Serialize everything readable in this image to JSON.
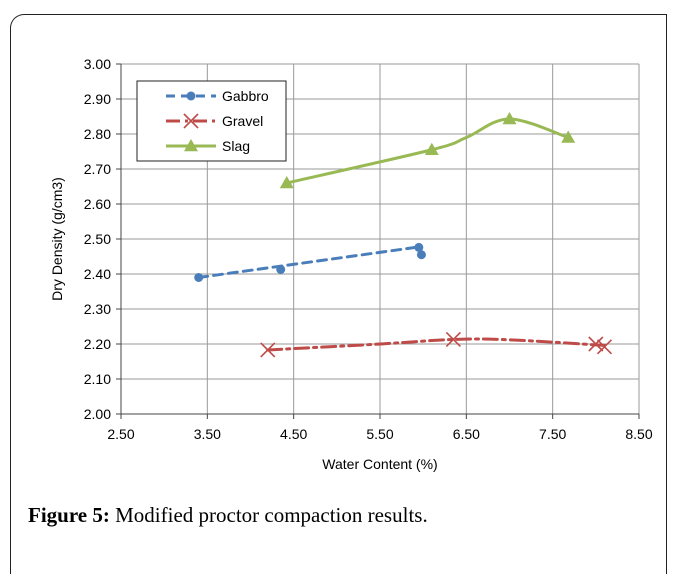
{
  "caption": {
    "label": "Figure 5:",
    "text": " Modified proctor compaction results."
  },
  "chart_data": {
    "type": "line",
    "title": "",
    "xlabel": "Water Content (%)",
    "ylabel": "Dry Density (g/cm3)",
    "xlim": [
      2.5,
      8.5
    ],
    "ylim": [
      2.0,
      3.0
    ],
    "xticks": [
      "2.50",
      "3.50",
      "4.50",
      "5.50",
      "6.50",
      "7.50",
      "8.50"
    ],
    "yticks": [
      "2.00",
      "2.10",
      "2.20",
      "2.30",
      "2.40",
      "2.50",
      "2.60",
      "2.70",
      "2.80",
      "2.90",
      "3.00"
    ],
    "grid": true,
    "legend_position": "top-left",
    "series": [
      {
        "name": "Gabbro",
        "color": "#4a7ebb",
        "marker": "circle",
        "line": "dashed",
        "points": [
          [
            3.4,
            2.39
          ],
          [
            4.35,
            2.413
          ],
          [
            5.95,
            2.476
          ],
          [
            5.98,
            2.455
          ]
        ],
        "fit": [
          [
            3.4,
            2.39
          ],
          [
            5.97,
            2.478
          ]
        ]
      },
      {
        "name": "Gravel",
        "color": "#be4b48",
        "marker": "x",
        "line": "dashdot",
        "points": [
          [
            4.2,
            2.183
          ],
          [
            6.35,
            2.213
          ],
          [
            8.0,
            2.2
          ],
          [
            8.1,
            2.192
          ]
        ],
        "fit": [
          [
            4.2,
            2.183
          ],
          [
            5.5,
            2.2
          ],
          [
            6.35,
            2.213
          ],
          [
            7.0,
            2.212
          ],
          [
            8.1,
            2.196
          ]
        ]
      },
      {
        "name": "Slag",
        "color": "#98b954",
        "marker": "triangle",
        "line": "solid",
        "points": [
          [
            4.42,
            2.66
          ],
          [
            6.1,
            2.755
          ],
          [
            7.0,
            2.843
          ],
          [
            7.68,
            2.79
          ]
        ],
        "fit": [
          [
            4.42,
            2.66
          ],
          [
            6.1,
            2.755
          ],
          [
            6.5,
            2.79
          ],
          [
            7.0,
            2.843
          ],
          [
            7.68,
            2.79
          ]
        ]
      }
    ]
  }
}
